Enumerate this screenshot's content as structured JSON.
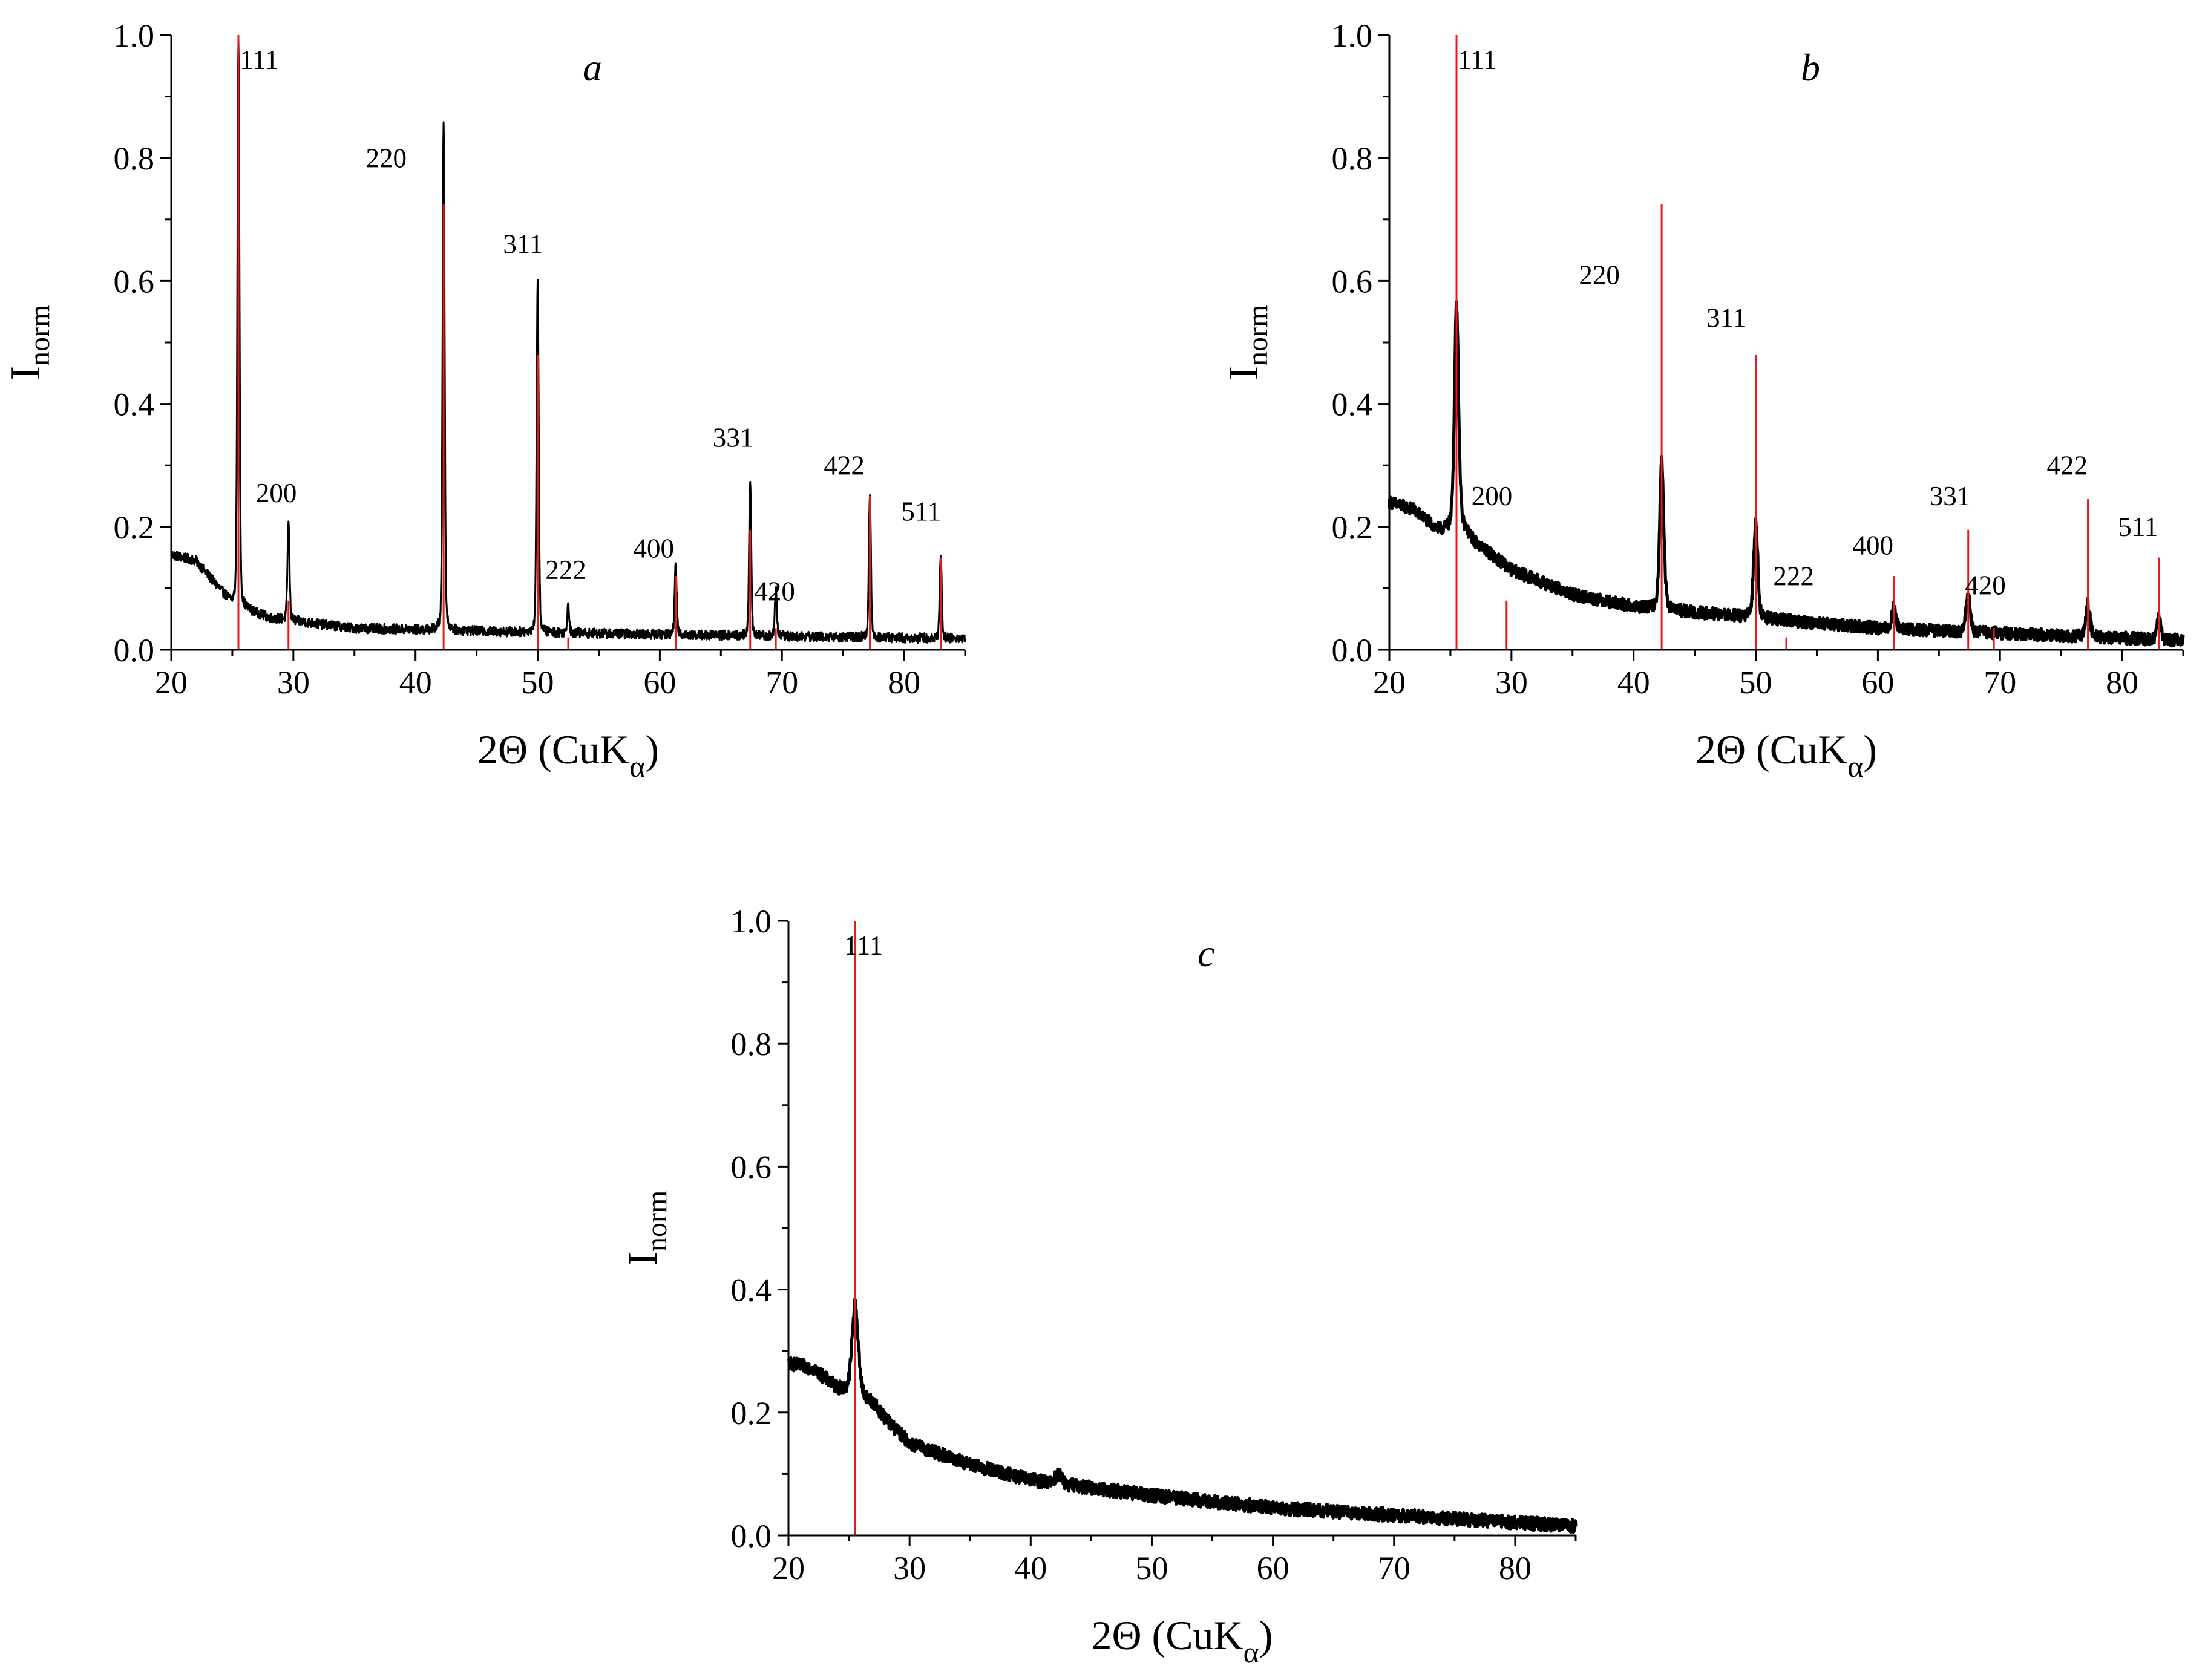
{
  "figure": {
    "x_axis_label": {
      "main": "2Θ (CuK",
      "sub": "α",
      "close": ")"
    },
    "y_axis_label": {
      "main": "I",
      "sub": "norm"
    }
  },
  "colors": {
    "experimental": "#000000",
    "reference": "#e8191b",
    "axis": "#000000"
  },
  "chart_data": [
    {
      "type": "line",
      "panel": "a",
      "title": "a",
      "xlabel": "2Θ (CuKα)",
      "ylabel": "Inorm",
      "xlim": [
        20,
        85
      ],
      "ylim": [
        0,
        1
      ],
      "x_ticks": [
        "20",
        "30",
        "40",
        "50",
        "60",
        "70",
        "80"
      ],
      "y_ticks": [
        "0.0",
        "0.2",
        "0.4",
        "0.6",
        "0.8",
        "1.0"
      ],
      "profile": {
        "background": [
          [
            20,
            0.155
          ],
          [
            22,
            0.145
          ],
          [
            25,
            0.075
          ],
          [
            28,
            0.052
          ],
          [
            35,
            0.035
          ],
          [
            50,
            0.028
          ],
          [
            70,
            0.022
          ],
          [
            85,
            0.018
          ]
        ],
        "width": 0.1,
        "noise": 0.008,
        "line_width": 3
      },
      "peaks": [
        {
          "hkl": "111",
          "x": 25.5,
          "height": 1.0
        },
        {
          "hkl": "200",
          "x": 29.6,
          "height": 0.205
        },
        {
          "hkl": "220",
          "x": 42.3,
          "height": 0.865
        },
        {
          "hkl": "311",
          "x": 50.0,
          "height": 0.605
        },
        {
          "hkl": "222",
          "x": 52.5,
          "height": 0.075
        },
        {
          "hkl": "400",
          "x": 61.3,
          "height": 0.14
        },
        {
          "hkl": "331",
          "x": 67.4,
          "height": 0.275
        },
        {
          "hkl": "420",
          "x": 69.5,
          "height": 0.1
        },
        {
          "hkl": "422",
          "x": 77.2,
          "height": 0.25
        },
        {
          "hkl": "511",
          "x": 83.0,
          "height": 0.155
        }
      ],
      "reference_lines": [
        {
          "x": 25.5,
          "height": 1.0
        },
        {
          "x": 29.6,
          "height": 0.08
        },
        {
          "x": 42.3,
          "height": 0.725
        },
        {
          "x": 50.0,
          "height": 0.48
        },
        {
          "x": 52.5,
          "height": 0.02
        },
        {
          "x": 61.3,
          "height": 0.12
        },
        {
          "x": 67.4,
          "height": 0.195
        },
        {
          "x": 69.5,
          "height": 0.035
        },
        {
          "x": 77.2,
          "height": 0.25
        },
        {
          "x": 83.0,
          "height": 0.15
        }
      ],
      "annotations": [
        {
          "text": "111",
          "x": 27.2,
          "y": 0.945
        },
        {
          "text": "200",
          "x": 28.6,
          "y": 0.24
        },
        {
          "text": "220",
          "x": 37.6,
          "y": 0.785
        },
        {
          "text": "311",
          "x": 48.8,
          "y": 0.645
        },
        {
          "text": "222",
          "x": 52.3,
          "y": 0.115
        },
        {
          "text": "400",
          "x": 59.5,
          "y": 0.15
        },
        {
          "text": "331",
          "x": 66.0,
          "y": 0.33
        },
        {
          "text": "420",
          "x": 69.4,
          "y": 0.08
        },
        {
          "text": "422",
          "x": 75.1,
          "y": 0.285
        },
        {
          "text": "511",
          "x": 81.4,
          "y": 0.21
        }
      ]
    },
    {
      "type": "line",
      "panel": "b",
      "title": "b",
      "xlabel": "2Θ (CuKα)",
      "ylabel": "Inorm",
      "xlim": [
        20,
        85
      ],
      "ylim": [
        0,
        1
      ],
      "x_ticks": [
        "20",
        "30",
        "40",
        "50",
        "60",
        "70",
        "80"
      ],
      "y_ticks": [
        "0.0",
        "0.2",
        "0.4",
        "0.6",
        "0.8",
        "1.0"
      ],
      "profile": {
        "background": [
          [
            20,
            0.24
          ],
          [
            22,
            0.228
          ],
          [
            24,
            0.195
          ],
          [
            26,
            0.2
          ],
          [
            27,
            0.175
          ],
          [
            28,
            0.16
          ],
          [
            30,
            0.13
          ],
          [
            35,
            0.09
          ],
          [
            40,
            0.07
          ],
          [
            50,
            0.052
          ],
          [
            60,
            0.035
          ],
          [
            70,
            0.027
          ],
          [
            85,
            0.015
          ]
        ],
        "width": 0.2,
        "noise": 0.01,
        "line_width": 5
      },
      "peaks": [
        {
          "hkl": "111",
          "x": 25.5,
          "height": 0.565
        },
        {
          "hkl": "220",
          "x": 42.3,
          "height": 0.31
        },
        {
          "hkl": "311",
          "x": 50.0,
          "height": 0.21
        },
        {
          "hkl": "400",
          "x": 61.3,
          "height": 0.07
        },
        {
          "hkl": "331",
          "x": 67.4,
          "height": 0.09
        },
        {
          "hkl": "422",
          "x": 77.2,
          "height": 0.075
        },
        {
          "hkl": "511",
          "x": 83.0,
          "height": 0.05
        }
      ],
      "reference_lines": [
        {
          "x": 25.5,
          "height": 1.0
        },
        {
          "x": 29.6,
          "height": 0.08
        },
        {
          "x": 42.3,
          "height": 0.725
        },
        {
          "x": 50.0,
          "height": 0.48
        },
        {
          "x": 52.5,
          "height": 0.02
        },
        {
          "x": 61.3,
          "height": 0.12
        },
        {
          "x": 67.4,
          "height": 0.195
        },
        {
          "x": 69.5,
          "height": 0.035
        },
        {
          "x": 77.2,
          "height": 0.245
        },
        {
          "x": 83.0,
          "height": 0.15
        }
      ],
      "annotations": [
        {
          "text": "111",
          "x": 27.2,
          "y": 0.945
        },
        {
          "text": "200",
          "x": 28.4,
          "y": 0.235
        },
        {
          "text": "220",
          "x": 37.2,
          "y": 0.595
        },
        {
          "text": "311",
          "x": 47.6,
          "y": 0.525
        },
        {
          "text": "222",
          "x": 53.1,
          "y": 0.105
        },
        {
          "text": "400",
          "x": 59.6,
          "y": 0.155
        },
        {
          "text": "331",
          "x": 65.9,
          "y": 0.235
        },
        {
          "text": "420",
          "x": 68.8,
          "y": 0.09
        },
        {
          "text": "422",
          "x": 75.5,
          "y": 0.285
        },
        {
          "text": "511",
          "x": 81.3,
          "y": 0.185
        }
      ]
    },
    {
      "type": "line",
      "panel": "c",
      "title": "c",
      "xlabel": "2Θ (CuKα)",
      "ylabel": "Inorm",
      "xlim": [
        20,
        85
      ],
      "ylim": [
        0,
        1
      ],
      "x_ticks": [
        "20",
        "30",
        "40",
        "50",
        "60",
        "70",
        "80"
      ],
      "y_ticks": [
        "0.0",
        "0.2",
        "0.4",
        "0.6",
        "0.8",
        "1.0"
      ],
      "profile": {
        "background": [
          [
            20,
            0.28
          ],
          [
            22,
            0.272
          ],
          [
            24,
            0.24
          ],
          [
            25,
            0.235
          ],
          [
            26,
            0.23
          ],
          [
            27,
            0.215
          ],
          [
            28,
            0.19
          ],
          [
            30,
            0.15
          ],
          [
            35,
            0.115
          ],
          [
            40,
            0.09
          ],
          [
            50,
            0.065
          ],
          [
            60,
            0.045
          ],
          [
            70,
            0.033
          ],
          [
            85,
            0.015
          ]
        ],
        "width": 0.3,
        "noise": 0.011,
        "line_width": 5
      },
      "peaks": [
        {
          "hkl": "111",
          "x": 25.5,
          "height": 0.375
        },
        {
          "hkl": "220",
          "x": 42.3,
          "height": 0.1
        }
      ],
      "reference_lines": [
        {
          "x": 25.5,
          "height": 1.0
        }
      ],
      "annotations": [
        {
          "text": "111",
          "x": 26.2,
          "y": 0.945
        }
      ]
    }
  ]
}
